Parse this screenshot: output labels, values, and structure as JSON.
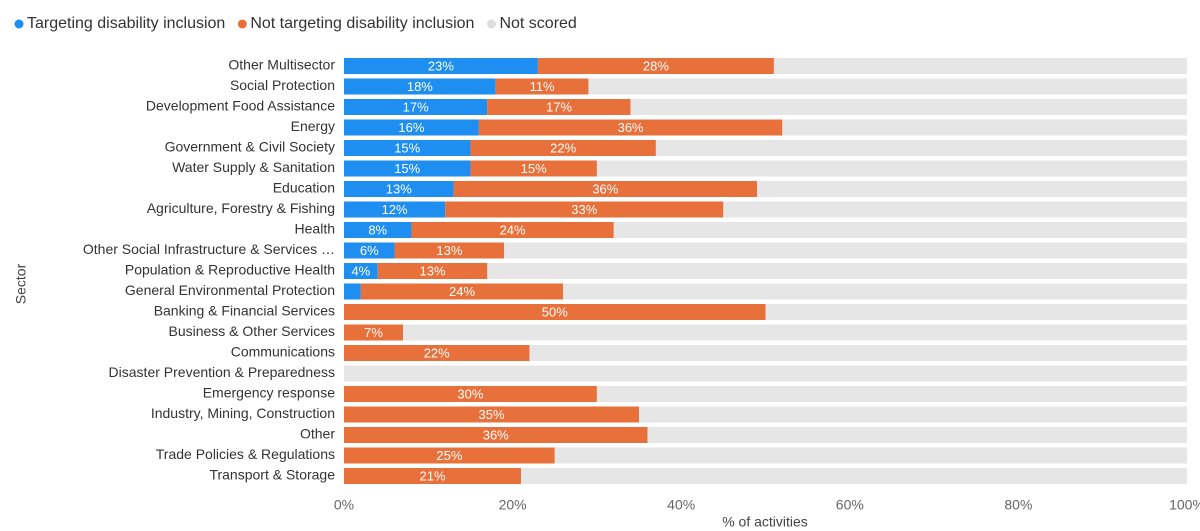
{
  "chart_data": {
    "type": "stacked-bar-horizontal",
    "y_label": "Sector",
    "x_label": "% of activities",
    "categories": [
      "Other Multisector",
      "Social Protection",
      "Development Food Assistance",
      "Energy",
      "Government & Civil Society",
      "Water Supply & Sanitation",
      "Education",
      "Agriculture, Forestry & Fishing",
      "Health",
      "Other Social Infrastructure & Services …",
      "Population & Reproductive Health",
      "General Environmental Protection",
      "Banking & Financial Services",
      "Business & Other Services",
      "Communications",
      "Disaster Prevention & Preparedness",
      "Emergency response",
      "Industry, Mining, Construction",
      "Other",
      "Trade Policies & Regulations",
      "Transport & Storage"
    ],
    "series": [
      {
        "name": "Targeting disability inclusion",
        "color": "#1f8ef1",
        "values": [
          23,
          18,
          17,
          16,
          15,
          15,
          13,
          12,
          8,
          6,
          4,
          2,
          0,
          0,
          0,
          0,
          0,
          0,
          0,
          0,
          0
        ],
        "value_labels": [
          "23%",
          "18%",
          "17%",
          "16%",
          "15%",
          "15%",
          "13%",
          "12%",
          "8%",
          "6%",
          "4%",
          null,
          null,
          null,
          null,
          null,
          null,
          null,
          null,
          null,
          null
        ]
      },
      {
        "name": "Not targeting disability inclusion",
        "color": "#e8703a",
        "values": [
          28,
          11,
          17,
          36,
          22,
          15,
          36,
          33,
          24,
          13,
          13,
          24,
          50,
          7,
          22,
          0,
          30,
          35,
          36,
          25,
          21
        ],
        "value_labels": [
          "28%",
          "11%",
          "17%",
          "36%",
          "22%",
          "15%",
          "36%",
          "33%",
          "24%",
          "13%",
          "13%",
          "24%",
          "50%",
          "7%",
          "22%",
          null,
          "30%",
          "35%",
          "36%",
          "25%",
          "21%"
        ]
      },
      {
        "name": "Not scored",
        "color": "#e6e6e6",
        "values": [
          49,
          71,
          66,
          48,
          63,
          70,
          51,
          55,
          68,
          81,
          83,
          74,
          50,
          93,
          78,
          100,
          70,
          65,
          64,
          75,
          79
        ]
      }
    ],
    "xlim": [
      0,
      100
    ],
    "xticks": [
      {
        "value": 0,
        "label": "0%"
      },
      {
        "value": 20,
        "label": "20%"
      },
      {
        "value": 40,
        "label": "40%"
      },
      {
        "value": 60,
        "label": "60%"
      },
      {
        "value": 80,
        "label": "80%"
      },
      {
        "value": 100,
        "label": "100%"
      }
    ],
    "legend": "top-left"
  }
}
